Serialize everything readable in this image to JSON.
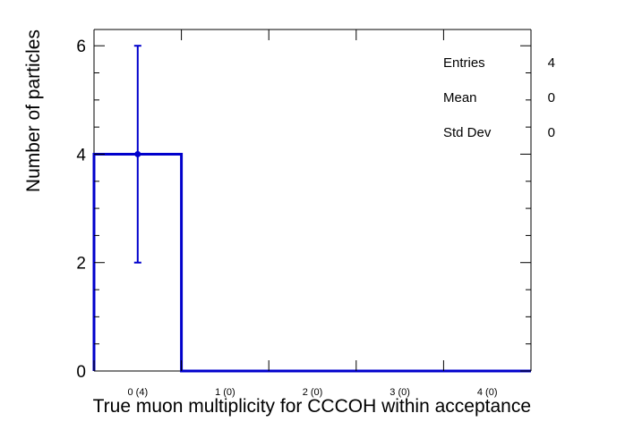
{
  "chart_data": {
    "type": "bar",
    "title": "",
    "xlabel": "True muon multiplicity for CCCOH within acceptance",
    "ylabel": "Number of particles",
    "categories": [
      "0 (4)",
      "1 (0)",
      "2 (0)",
      "3 (0)",
      "4 (0)"
    ],
    "values": [
      4,
      0,
      0,
      0,
      0
    ],
    "errors": [
      2,
      0,
      0,
      0,
      0
    ],
    "ylim": [
      0,
      6.3
    ],
    "yticks": [
      0,
      2,
      4,
      6
    ],
    "grid": false,
    "legend": "none",
    "line_color": "#0000cc",
    "stats_box": {
      "position": "top-right",
      "rows": [
        {
          "label": "Entries",
          "value": "4"
        },
        {
          "label": "Mean",
          "value": "0"
        },
        {
          "label": "Std Dev",
          "value": "0"
        }
      ]
    }
  }
}
